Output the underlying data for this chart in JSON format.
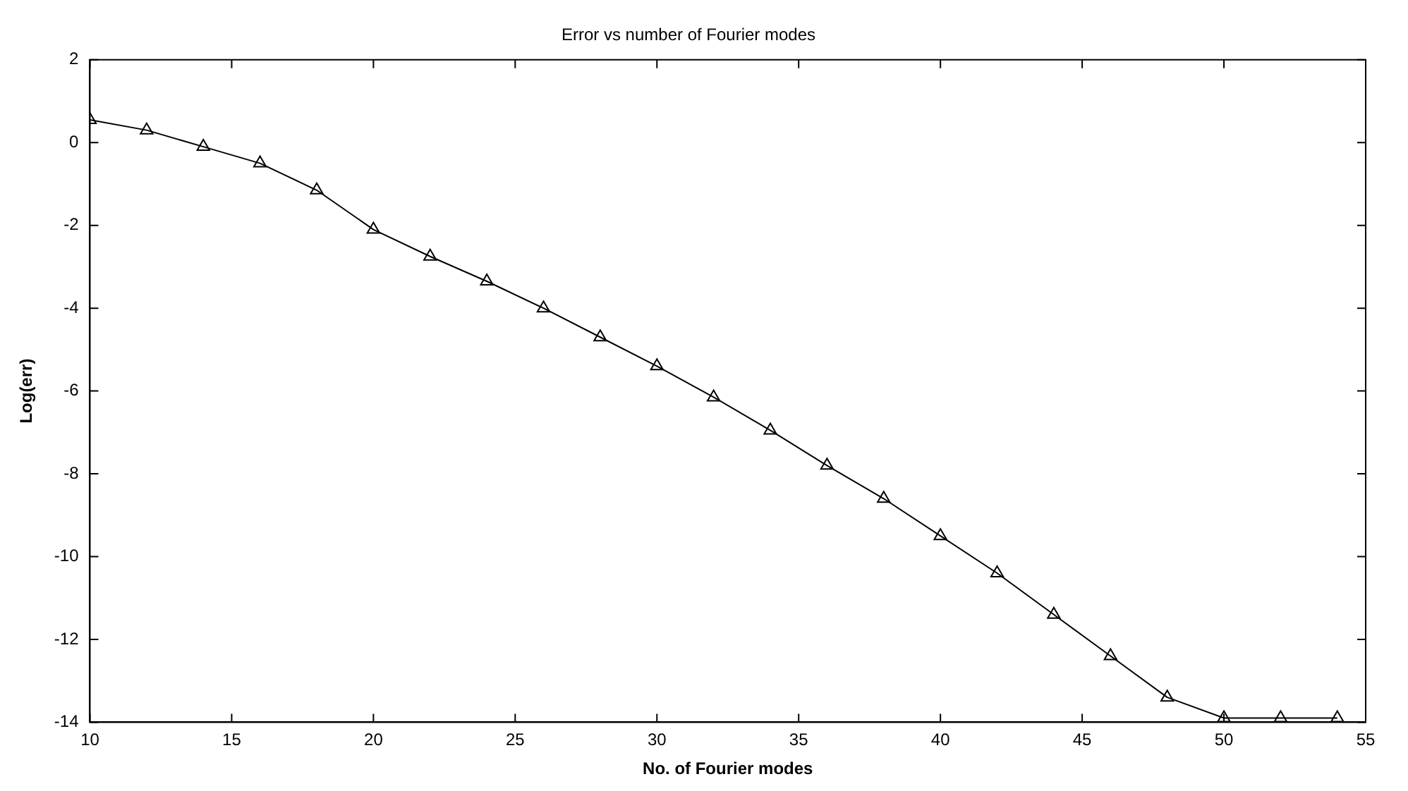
{
  "chart_data": {
    "type": "line",
    "title": "Error vs number of Fourier modes",
    "xlabel": "No. of Fourier modes",
    "ylabel": "Log(err)",
    "x": [
      10,
      12,
      14,
      16,
      18,
      20,
      22,
      24,
      26,
      28,
      30,
      32,
      34,
      36,
      38,
      40,
      42,
      44,
      46,
      48,
      50,
      52,
      54
    ],
    "series": [
      {
        "color": "#000000",
        "values": [
          0.55,
          0.3,
          -0.1,
          -0.5,
          -1.15,
          -2.1,
          -2.75,
          -3.35,
          -4.0,
          -4.7,
          -5.4,
          -6.15,
          -6.95,
          -7.8,
          -8.6,
          -9.5,
          -10.4,
          -11.4,
          -12.4,
          -13.4,
          -13.9,
          -13.9,
          -13.9
        ]
      }
    ],
    "xlim": [
      10,
      55
    ],
    "xticks": [
      10,
      15,
      20,
      25,
      30,
      35,
      40,
      45,
      50,
      55
    ],
    "ylim": [
      -14,
      2
    ],
    "yticks": [
      -14,
      -12,
      -10,
      -8,
      -6,
      -4,
      -2,
      0,
      2
    ],
    "grid": false,
    "legend": false,
    "marker": "triangle",
    "line_style": "solid"
  }
}
